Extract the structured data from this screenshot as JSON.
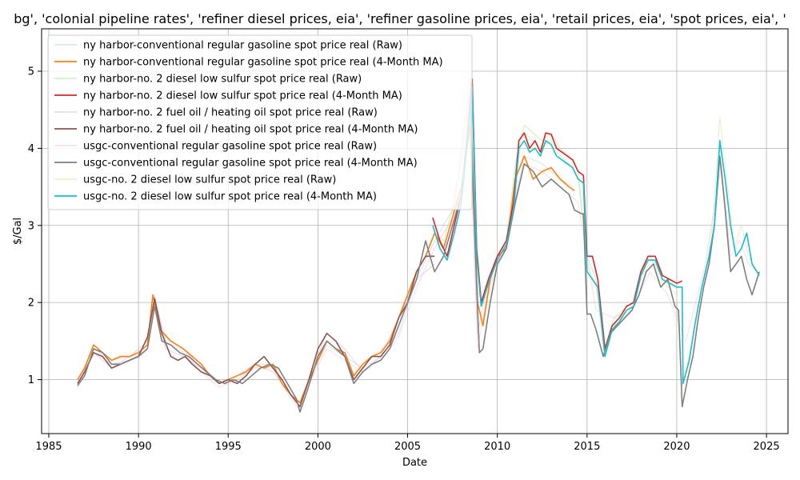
{
  "chart_data": {
    "type": "line",
    "title": "bg', 'colonial pipeline rates', 'refiner diesel prices, eia', 'refiner gasoline prices, eia', 'retail prices, eia', 'spot prices, eia', '",
    "xlabel": "Date",
    "ylabel": "$/Gal",
    "xlim": [
      1984.6,
      2026.2
    ],
    "ylim": [
      0.3,
      5.55
    ],
    "xticks": [
      1985,
      1990,
      1995,
      2000,
      2005,
      2010,
      2015,
      2020,
      2025
    ],
    "yticks": [
      1,
      2,
      3,
      4,
      5
    ],
    "grid": true,
    "legend_position": "upper-left",
    "series": [
      {
        "name": "ny harbor-conventional regular gasoline spot price real (Raw)",
        "color": "#aec7e8",
        "style": "raw",
        "x": [
          1986.6,
          1987.5,
          1988.5,
          1989.5,
          1990.5,
          1990.9,
          1991.5,
          1992.5,
          1993.5,
          1994.5,
          1995.5,
          1996.5,
          1997.5,
          1998.5,
          1999.0,
          1999.6,
          2000.5,
          2001.5,
          2002.5,
          2003.5,
          2004.5,
          2005.5,
          2006.5,
          2007.5,
          2008.4,
          2008.9,
          2009.5,
          2010.5,
          2011.5,
          2012.5,
          2013.5,
          2014.2
        ],
        "y": [
          1.0,
          1.4,
          1.25,
          1.3,
          1.45,
          2.05,
          1.55,
          1.4,
          1.15,
          0.95,
          1.05,
          1.2,
          1.2,
          0.8,
          0.65,
          1.05,
          1.45,
          1.3,
          1.15,
          1.3,
          1.6,
          2.3,
          2.8,
          3.2,
          4.7,
          1.6,
          2.3,
          2.8,
          3.9,
          3.8,
          3.6,
          3.5
        ]
      },
      {
        "name": "ny harbor-conventional regular gasoline spot price real (4-Month MA)",
        "color": "#ff7f0e",
        "style": "ma",
        "x": [
          1986.6,
          1987.0,
          1987.5,
          1988.0,
          1988.5,
          1989.0,
          1989.5,
          1990.0,
          1990.5,
          1990.8,
          1991.2,
          1991.8,
          1992.5,
          1993.0,
          1993.5,
          1994.0,
          1994.5,
          1995.0,
          1995.5,
          1996.0,
          1996.5,
          1997.0,
          1997.5,
          1998.0,
          1998.5,
          1999.0,
          1999.5,
          2000.0,
          2000.5,
          2001.0,
          2001.5,
          2002.0,
          2002.5,
          2003.0,
          2003.5,
          2004.0,
          2004.5,
          2005.0,
          2005.5,
          2006.0,
          2006.5,
          2007.0,
          2007.5,
          2008.0,
          2008.5,
          2008.9,
          2009.2,
          2009.6,
          2010.0,
          2010.5,
          2011.0,
          2011.5,
          2012.0,
          2012.5,
          2013.0,
          2013.5,
          2014.0,
          2014.3
        ],
        "y": [
          1.0,
          1.15,
          1.45,
          1.35,
          1.25,
          1.3,
          1.3,
          1.35,
          1.45,
          2.1,
          1.65,
          1.5,
          1.4,
          1.3,
          1.2,
          1.05,
          0.95,
          1.0,
          1.05,
          1.1,
          1.2,
          1.15,
          1.2,
          0.95,
          0.8,
          0.7,
          1.0,
          1.25,
          1.5,
          1.4,
          1.35,
          1.05,
          1.2,
          1.3,
          1.35,
          1.5,
          1.8,
          2.1,
          2.4,
          2.6,
          2.9,
          2.7,
          3.1,
          3.5,
          4.3,
          2.0,
          1.7,
          2.3,
          2.6,
          2.7,
          3.6,
          3.9,
          3.6,
          3.7,
          3.75,
          3.6,
          3.5,
          3.45
        ]
      },
      {
        "name": "ny harbor-no. 2 diesel low sulfur spot price real (Raw)",
        "color": "#98df8a",
        "style": "raw",
        "x": [
          2006.5,
          2007.0,
          2007.5,
          2008.0,
          2008.5,
          2008.9,
          2009.5,
          2010.0,
          2010.5,
          2011.0,
          2011.5,
          2012.0,
          2012.5,
          2013.0,
          2013.5,
          2014.0,
          2014.5,
          2015.0,
          2015.5,
          2016.0,
          2016.5,
          2017.0,
          2017.5,
          2018.0,
          2018.5,
          2019.0,
          2019.5,
          2020.0
        ],
        "y": [
          2.9,
          2.8,
          3.2,
          3.9,
          4.9,
          2.1,
          2.2,
          2.6,
          2.8,
          3.8,
          4.3,
          4.2,
          4.1,
          4.2,
          4.0,
          3.9,
          3.7,
          2.6,
          2.3,
          1.4,
          1.8,
          1.9,
          2.0,
          2.4,
          2.6,
          2.4,
          2.3,
          2.2
        ]
      },
      {
        "name": "ny harbor-no. 2 diesel low sulfur spot price real (4-Month MA)",
        "color": "#d62728",
        "style": "ma",
        "x": [
          2006.4,
          2006.8,
          2007.2,
          2007.6,
          2008.0,
          2008.3,
          2008.6,
          2008.85,
          2009.1,
          2009.5,
          2010.0,
          2010.5,
          2010.9,
          2011.2,
          2011.5,
          2011.8,
          2012.1,
          2012.4,
          2012.7,
          2013.0,
          2013.3,
          2013.6,
          2013.9,
          2014.2,
          2014.5,
          2014.8,
          2015.0,
          2015.3,
          2015.6,
          2016.0,
          2016.4,
          2016.8,
          2017.2,
          2017.6,
          2018.0,
          2018.4,
          2018.8,
          2019.2,
          2019.6,
          2020.0,
          2020.3
        ],
        "y": [
          3.1,
          2.8,
          2.6,
          3.0,
          3.4,
          4.1,
          4.9,
          2.7,
          2.0,
          2.3,
          2.6,
          2.8,
          3.3,
          4.1,
          4.2,
          4.0,
          4.1,
          3.95,
          4.2,
          4.18,
          4.0,
          3.95,
          3.9,
          3.85,
          3.7,
          3.65,
          2.6,
          2.6,
          2.3,
          1.4,
          1.7,
          1.8,
          1.95,
          2.0,
          2.4,
          2.6,
          2.6,
          2.35,
          2.3,
          2.25,
          2.28
        ]
      },
      {
        "name": "ny harbor-no. 2 fuel oil / heating oil spot price real (Raw)",
        "color": "#c5b0d5",
        "style": "raw",
        "x": [
          1986.6,
          1987.5,
          1988.5,
          1989.5,
          1990.5,
          1990.9,
          1991.5,
          1992.5,
          1993.5,
          1994.5,
          1995.5,
          1996.5,
          1997.5,
          1998.5,
          1999.0,
          1999.6,
          2000.5,
          2001.5,
          2002.5,
          2003.5,
          2004.5,
          2005.5,
          2006.5
        ],
        "y": [
          0.95,
          1.35,
          1.15,
          1.3,
          1.5,
          2.1,
          1.4,
          1.3,
          1.15,
          0.95,
          1.05,
          1.2,
          1.1,
          0.8,
          0.65,
          1.1,
          1.6,
          1.4,
          1.1,
          1.3,
          1.8,
          2.3,
          2.5
        ]
      },
      {
        "name": "ny harbor-no. 2 fuel oil / heating oil spot price real (4-Month MA)",
        "color": "#8c564b",
        "style": "ma",
        "x": [
          1986.6,
          1987.0,
          1987.5,
          1988.0,
          1988.5,
          1989.0,
          1989.5,
          1990.0,
          1990.5,
          1990.9,
          1991.3,
          1991.8,
          1992.2,
          1992.6,
          1993.0,
          1993.5,
          1994.0,
          1994.5,
          1995.0,
          1995.5,
          1996.0,
          1996.5,
          1997.0,
          1997.5,
          1998.0,
          1998.5,
          1999.0,
          1999.5,
          2000.0,
          2000.5,
          2001.0,
          2001.5,
          2002.0,
          2002.5,
          2003.0,
          2003.5,
          2004.0,
          2004.5,
          2005.0,
          2005.5,
          2006.0,
          2006.5
        ],
        "y": [
          0.95,
          1.1,
          1.35,
          1.3,
          1.15,
          1.2,
          1.25,
          1.3,
          1.55,
          2.05,
          1.6,
          1.3,
          1.25,
          1.3,
          1.2,
          1.1,
          1.05,
          0.95,
          1.0,
          0.95,
          1.05,
          1.2,
          1.3,
          1.15,
          1.0,
          0.8,
          0.65,
          1.0,
          1.4,
          1.6,
          1.5,
          1.3,
          1.0,
          1.15,
          1.3,
          1.3,
          1.45,
          1.8,
          2.0,
          2.4,
          2.6,
          2.6
        ]
      },
      {
        "name": "usgc-conventional regular gasoline spot price real (Raw)",
        "color": "#f7b6d2",
        "style": "raw",
        "x": [
          1986.6,
          1987.5,
          1988.5,
          1989.5,
          1990.5,
          1990.9,
          1991.5,
          1992.5,
          1993.5,
          1994.5,
          1995.5,
          1996.5,
          1997.5,
          1998.5,
          1999.0,
          1999.6,
          2000.5,
          2001.5,
          2002.5,
          2003.5,
          2004.5,
          2005.5,
          2006.5,
          2007.5,
          2008.4,
          2008.9,
          2009.5,
          2010.5,
          2011.5,
          2012.5,
          2013.5,
          2014.5,
          2015.5,
          2016.5,
          2017.5,
          2018.5,
          2019.5,
          2020.5,
          2021.5,
          2022.5,
          2023.0,
          2023.5,
          2024.0,
          2024.5
        ],
        "y": [
          0.9,
          1.35,
          1.2,
          1.25,
          1.4,
          2.0,
          1.5,
          1.35,
          1.1,
          0.9,
          1.0,
          1.15,
          1.15,
          0.75,
          0.6,
          1.0,
          1.4,
          1.25,
          1.1,
          1.25,
          1.55,
          2.2,
          2.7,
          3.1,
          4.5,
          1.4,
          2.2,
          2.7,
          3.8,
          3.7,
          3.5,
          3.3,
          1.9,
          1.8,
          1.9,
          2.4,
          2.1,
          1.5,
          2.4,
          3.8,
          2.6,
          2.8,
          2.5,
          2.4
        ]
      },
      {
        "name": "usgc-conventional regular gasoline spot price real (4-Month MA)",
        "color": "#7f7f7f",
        "style": "ma",
        "x": [
          1986.6,
          1987.0,
          1987.5,
          1988.0,
          1988.5,
          1989.0,
          1989.5,
          1990.0,
          1990.5,
          1990.9,
          1991.3,
          1991.8,
          1992.3,
          1992.8,
          1993.3,
          1993.8,
          1994.3,
          1994.8,
          1995.3,
          1995.8,
          1996.3,
          1996.8,
          1997.3,
          1997.8,
          1998.3,
          1998.8,
          1999.0,
          1999.4,
          2000.0,
          2000.5,
          2001.0,
          2001.5,
          2002.0,
          2002.5,
          2003.0,
          2003.5,
          2004.0,
          2004.5,
          2005.0,
          2005.5,
          2006.0,
          2006.5,
          2007.0,
          2007.5,
          2008.0,
          2008.5,
          2008.8,
          2009.0,
          2009.2,
          2009.6,
          2010.0,
          2010.5,
          2011.0,
          2011.5,
          2012.0,
          2012.5,
          2013.0,
          2013.5,
          2014.0,
          2014.3,
          2014.7,
          2014.8,
          2015.0,
          2015.2,
          2015.5,
          2015.9,
          2016.3,
          2016.7,
          2017.1,
          2017.5,
          2017.9,
          2018.3,
          2018.7,
          2019.1,
          2019.5,
          2019.9,
          2020.1,
          2020.3,
          2020.6,
          2020.9,
          2021.2,
          2021.5,
          2021.8,
          2022.1,
          2022.4,
          2022.7,
          2023.0,
          2023.3,
          2023.6,
          2023.9,
          2024.2,
          2024.6
        ],
        "y": [
          0.92,
          1.05,
          1.4,
          1.35,
          1.2,
          1.2,
          1.25,
          1.3,
          1.4,
          1.95,
          1.5,
          1.45,
          1.35,
          1.3,
          1.2,
          1.1,
          1.0,
          0.95,
          1.0,
          0.95,
          1.05,
          1.15,
          1.2,
          1.15,
          0.95,
          0.75,
          0.58,
          0.85,
          1.3,
          1.5,
          1.4,
          1.3,
          0.95,
          1.1,
          1.2,
          1.25,
          1.4,
          1.7,
          2.0,
          2.3,
          2.8,
          2.4,
          2.6,
          3.0,
          3.4,
          4.6,
          2.5,
          1.35,
          1.4,
          2.0,
          2.5,
          2.7,
          3.3,
          3.8,
          3.7,
          3.5,
          3.6,
          3.5,
          3.4,
          3.2,
          3.15,
          3.15,
          1.85,
          1.85,
          1.65,
          1.3,
          1.6,
          1.7,
          1.8,
          1.9,
          2.1,
          2.4,
          2.5,
          2.2,
          2.3,
          1.95,
          1.9,
          0.65,
          1.0,
          1.3,
          1.8,
          2.2,
          2.5,
          3.0,
          3.9,
          3.2,
          2.4,
          2.5,
          2.6,
          2.3,
          2.1,
          2.4
        ]
      },
      {
        "name": "usgc-no. 2 diesel low sulfur spot price real (Raw)",
        "color": "#dbdb8d",
        "style": "raw",
        "x": [
          2006.5,
          2007.0,
          2007.5,
          2008.0,
          2008.5,
          2008.9,
          2009.5,
          2010.0,
          2010.5,
          2011.0,
          2011.5,
          2012.0,
          2012.5,
          2013.0,
          2013.5,
          2014.0,
          2014.5,
          2015.0,
          2015.5,
          2016.0,
          2016.5,
          2017.0,
          2017.5,
          2018.0,
          2018.5,
          2019.0,
          2019.5,
          2020.0,
          2020.3,
          2020.6,
          2021.0,
          2021.5,
          2022.0,
          2022.4,
          2022.8,
          2023.2,
          2023.6,
          2024.0,
          2024.5
        ],
        "y": [
          2.8,
          2.7,
          3.1,
          3.8,
          4.8,
          2.0,
          2.1,
          2.5,
          2.7,
          3.7,
          4.2,
          4.1,
          4.0,
          4.1,
          3.9,
          3.8,
          3.6,
          2.5,
          2.2,
          1.3,
          1.7,
          1.8,
          1.9,
          2.3,
          2.5,
          2.3,
          2.2,
          2.1,
          0.9,
          1.2,
          1.7,
          2.3,
          3.0,
          4.4,
          3.6,
          2.7,
          3.0,
          2.6,
          2.4
        ]
      },
      {
        "name": "usgc-no. 2 diesel low sulfur spot price real (4-Month MA)",
        "color": "#17becf",
        "style": "ma",
        "x": [
          2006.4,
          2006.8,
          2007.2,
          2007.6,
          2008.0,
          2008.3,
          2008.6,
          2008.85,
          2009.1,
          2009.5,
          2010.0,
          2010.5,
          2010.9,
          2011.2,
          2011.5,
          2011.8,
          2012.1,
          2012.4,
          2012.7,
          2013.0,
          2013.3,
          2013.6,
          2013.9,
          2014.2,
          2014.5,
          2014.8,
          2015.0,
          2015.3,
          2015.6,
          2016.0,
          2016.4,
          2016.8,
          2017.2,
          2017.6,
          2018.0,
          2018.4,
          2018.8,
          2019.2,
          2019.6,
          2020.0,
          2020.3,
          2020.35,
          2020.7,
          2021.0,
          2021.4,
          2021.8,
          2022.1,
          2022.4,
          2022.7,
          2023.0,
          2023.3,
          2023.6,
          2023.9,
          2024.2,
          2024.6
        ],
        "y": [
          3.0,
          2.7,
          2.55,
          2.9,
          3.3,
          4.0,
          4.8,
          2.6,
          1.95,
          2.25,
          2.55,
          2.75,
          3.2,
          4.0,
          4.1,
          3.95,
          4.0,
          3.9,
          4.1,
          4.05,
          3.9,
          3.85,
          3.8,
          3.75,
          3.6,
          3.55,
          2.4,
          2.3,
          2.2,
          1.3,
          1.65,
          1.75,
          1.9,
          1.95,
          2.35,
          2.55,
          2.55,
          2.3,
          2.25,
          2.2,
          2.2,
          0.95,
          1.25,
          1.7,
          2.2,
          2.6,
          3.0,
          4.1,
          3.6,
          3.0,
          2.6,
          2.7,
          2.9,
          2.5,
          2.35
        ]
      }
    ]
  }
}
